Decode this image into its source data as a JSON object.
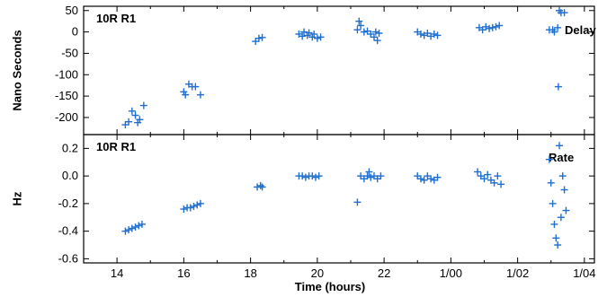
{
  "chart_data": [
    {
      "type": "scatter",
      "title": "10R R1",
      "annotation": "Delay",
      "ylabel": "Nano Seconds",
      "xlabel": "",
      "xlim": [
        13,
        28.3
      ],
      "ylim": [
        -240,
        60
      ],
      "yticks": [
        50,
        0,
        -50,
        -100,
        -150,
        -200
      ],
      "ytick_labels": [
        "50",
        "0",
        "-50",
        "-100",
        "-150",
        "-200"
      ],
      "color": "#1f6fd1",
      "points": [
        [
          14.25,
          -217
        ],
        [
          14.35,
          -210
        ],
        [
          14.45,
          -185
        ],
        [
          14.55,
          -195
        ],
        [
          14.62,
          -212
        ],
        [
          14.68,
          -205
        ],
        [
          14.8,
          -172
        ],
        [
          16.0,
          -140
        ],
        [
          16.05,
          -147
        ],
        [
          16.15,
          -122
        ],
        [
          16.25,
          -128
        ],
        [
          16.35,
          -128
        ],
        [
          16.5,
          -147
        ],
        [
          18.15,
          -22
        ],
        [
          18.25,
          -15
        ],
        [
          18.35,
          -13
        ],
        [
          19.45,
          -5
        ],
        [
          19.55,
          -10
        ],
        [
          19.6,
          0
        ],
        [
          19.7,
          -8
        ],
        [
          19.75,
          -2
        ],
        [
          19.85,
          -12
        ],
        [
          19.9,
          -5
        ],
        [
          20.0,
          -15
        ],
        [
          20.1,
          -12
        ],
        [
          21.2,
          5
        ],
        [
          21.25,
          25
        ],
        [
          21.3,
          15
        ],
        [
          21.4,
          0
        ],
        [
          21.5,
          2
        ],
        [
          21.6,
          -5
        ],
        [
          21.7,
          -12
        ],
        [
          21.75,
          0
        ],
        [
          21.85,
          -3
        ],
        [
          21.8,
          -20
        ],
        [
          23.0,
          0
        ],
        [
          23.1,
          -5
        ],
        [
          23.2,
          -8
        ],
        [
          23.3,
          -3
        ],
        [
          23.4,
          -10
        ],
        [
          23.5,
          -5
        ],
        [
          23.6,
          -8
        ],
        [
          24.85,
          10
        ],
        [
          24.95,
          5
        ],
        [
          25.05,
          12
        ],
        [
          25.15,
          8
        ],
        [
          25.25,
          10
        ],
        [
          25.35,
          12
        ],
        [
          25.45,
          15
        ],
        [
          26.95,
          5
        ],
        [
          27.05,
          5
        ],
        [
          27.1,
          0
        ],
        [
          27.2,
          10
        ],
        [
          27.25,
          50
        ],
        [
          27.3,
          45
        ],
        [
          27.4,
          45
        ],
        [
          27.22,
          -128
        ]
      ]
    },
    {
      "type": "scatter",
      "title": "10R R1",
      "annotation": "Rate",
      "ylabel": "Hz",
      "xlabel": "Time (hours)",
      "xlim": [
        13,
        28.3
      ],
      "ylim": [
        -0.63,
        0.3
      ],
      "yticks": [
        0.2,
        0.0,
        -0.2,
        -0.4,
        -0.6
      ],
      "ytick_labels": [
        "0.2",
        "0.0",
        "-0.2",
        "-0.4",
        "-0.6"
      ],
      "xticks": [
        14,
        16,
        18,
        20,
        22,
        24,
        26,
        28
      ],
      "xtick_labels": [
        "14",
        "16",
        "18",
        "20",
        "22",
        "1/00",
        "1/02",
        "1/04"
      ],
      "color": "#1f6fd1",
      "points": [
        [
          14.25,
          -0.4
        ],
        [
          14.35,
          -0.39
        ],
        [
          14.45,
          -0.38
        ],
        [
          14.55,
          -0.37
        ],
        [
          14.65,
          -0.36
        ],
        [
          14.75,
          -0.35
        ],
        [
          16.0,
          -0.24
        ],
        [
          16.1,
          -0.23
        ],
        [
          16.2,
          -0.23
        ],
        [
          16.3,
          -0.22
        ],
        [
          16.4,
          -0.21
        ],
        [
          16.5,
          -0.2
        ],
        [
          18.2,
          -0.08
        ],
        [
          18.3,
          -0.07
        ],
        [
          18.35,
          -0.08
        ],
        [
          19.45,
          0.0
        ],
        [
          19.55,
          0.0
        ],
        [
          19.65,
          -0.01
        ],
        [
          19.75,
          0.0
        ],
        [
          19.85,
          0.0
        ],
        [
          19.95,
          -0.01
        ],
        [
          20.05,
          0.0
        ],
        [
          21.2,
          -0.19
        ],
        [
          21.3,
          0.0
        ],
        [
          21.4,
          -0.02
        ],
        [
          21.5,
          0.0
        ],
        [
          21.55,
          0.03
        ],
        [
          21.6,
          -0.01
        ],
        [
          21.7,
          0.0
        ],
        [
          21.8,
          -0.02
        ],
        [
          21.9,
          0.0
        ],
        [
          23.0,
          0.0
        ],
        [
          23.1,
          -0.02
        ],
        [
          23.2,
          -0.03
        ],
        [
          23.3,
          0.0
        ],
        [
          23.4,
          -0.02
        ],
        [
          23.5,
          -0.03
        ],
        [
          23.6,
          -0.01
        ],
        [
          24.8,
          0.03
        ],
        [
          24.9,
          0.0
        ],
        [
          25.0,
          -0.02
        ],
        [
          25.1,
          0.01
        ],
        [
          25.2,
          -0.03
        ],
        [
          25.3,
          -0.05
        ],
        [
          25.4,
          0.0
        ],
        [
          25.5,
          -0.06
        ],
        [
          26.95,
          0.12
        ],
        [
          27.0,
          -0.05
        ],
        [
          27.05,
          -0.2
        ],
        [
          27.1,
          -0.35
        ],
        [
          27.15,
          -0.45
        ],
        [
          27.2,
          -0.5
        ],
        [
          27.25,
          0.22
        ],
        [
          27.3,
          -0.3
        ],
        [
          27.35,
          0.0
        ],
        [
          27.4,
          -0.1
        ],
        [
          27.45,
          -0.25
        ]
      ]
    }
  ]
}
